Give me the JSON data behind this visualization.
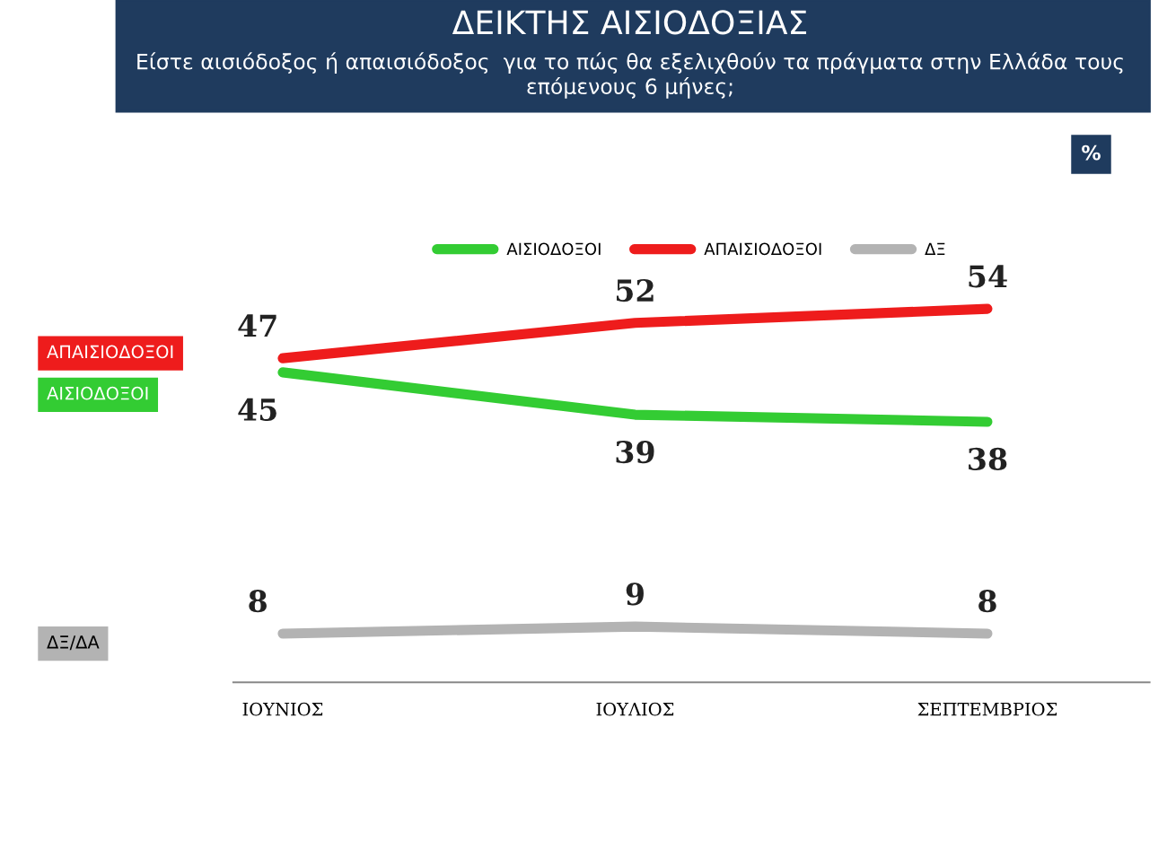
{
  "chart_data": {
    "type": "line",
    "title": "ΔΕΙΚΤΗΣ ΑΙΣΙΟΔΟΞΙΑΣ",
    "subtitle": "Είστε αισιόδοξος ή απαισιόδοξος  για το πώς θα εξελιχθούν τα πράγματα στην Ελλάδα τους επόμενους 6 μήνες;",
    "categories": [
      "ΙΟΥΝΙΟΣ",
      "ΙΟΥΛΙΟΣ",
      "ΣΕΠΤΕΜΒΡΙΟΣ"
    ],
    "series": [
      {
        "name": "ΑΙΣΙΟΔΟΞΟΙ",
        "color": "#33cc33",
        "values": [
          45,
          39,
          38
        ]
      },
      {
        "name": "ΑΠΑΙΣΙΟΔΟΞΟΙ",
        "color": "#ee1c1c",
        "values": [
          47,
          52,
          54
        ]
      },
      {
        "name": "ΔΞ",
        "color": "#b3b3b3",
        "values": [
          8,
          9,
          8
        ]
      }
    ],
    "tick_labels": "x",
    "data_labels": true,
    "legend": "top",
    "grid": false,
    "marker": "none",
    "line_style": "solid",
    "annotations": [
      "ΑΠΑΙΣΙΟΔΟΞΟΙ",
      "ΑΙΣΙΟΔΟΞΟΙ",
      "ΔΞ/ΔΑ",
      "%"
    ]
  }
}
